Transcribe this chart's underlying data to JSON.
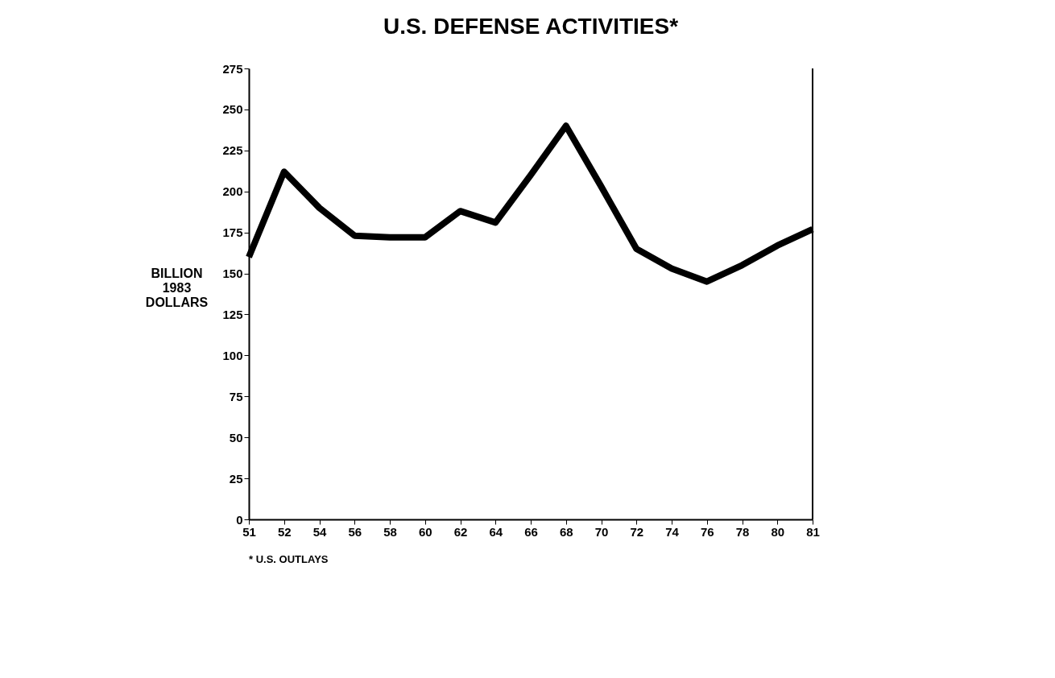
{
  "chart_data": {
    "type": "line",
    "title": "U.S. DEFENSE ACTIVITIES*",
    "ylabel": "BILLION 1983 DOLLARS",
    "categories": [
      "51",
      "52",
      "54",
      "56",
      "58",
      "60",
      "62",
      "64",
      "66",
      "68",
      "70",
      "72",
      "74",
      "76",
      "78",
      "80",
      "81"
    ],
    "series": [
      {
        "color": "#000000",
        "values": [
          160,
          212,
          190,
          173,
          172,
          172,
          188,
          181,
          210,
          240,
          203,
          165,
          153,
          145,
          155,
          167,
          177
        ]
      }
    ],
    "ylim": [
      0,
      275
    ],
    "yticks": [
      0,
      25,
      50,
      75,
      100,
      125,
      150,
      175,
      200,
      225,
      250,
      275
    ],
    "grid": false,
    "marker": "none",
    "line_style": "solid",
    "annotations": [
      "* U.S. OUTLAYS"
    ]
  }
}
